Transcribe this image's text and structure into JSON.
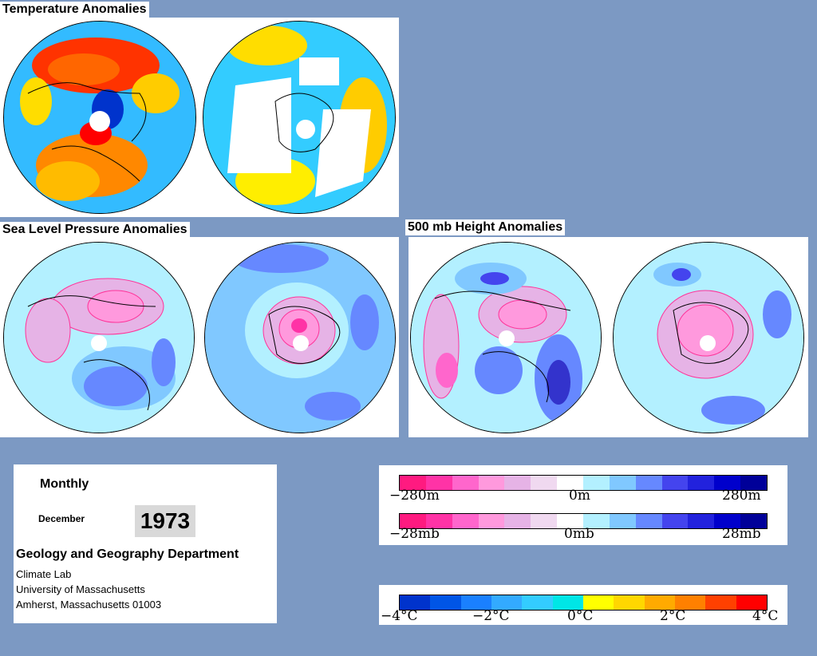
{
  "titles": {
    "temperature": "Temperature Anomalies",
    "slp": "Sea Level Pressure Anomalies",
    "height500": "500 mb Height Anomalies"
  },
  "info": {
    "period": "Monthly",
    "month": "December",
    "year": "1973",
    "department": "Geology and Geography Department",
    "address_lines": [
      "Climate Lab",
      "University of Massachusetts",
      "Amherst, Massachusetts 01003"
    ]
  },
  "legends": {
    "height_scale": {
      "min_label": "−280m",
      "mid_label": "0m",
      "max_label": "280m"
    },
    "pressure_scale": {
      "min_label": "−28mb",
      "mid_label": "0mb",
      "max_label": "28mb"
    },
    "temp_scale": {
      "labels": [
        "−4°C",
        "−2°C",
        "0°C",
        "2°C",
        "4°C"
      ]
    },
    "anomaly_colors": [
      "#ff1a80",
      "#ff33a6",
      "#ff66cc",
      "#ff99dd",
      "#e6b3e6",
      "#f0d9f0",
      "#ffffff",
      "#b3f0ff",
      "#80c8ff",
      "#6688ff",
      "#4444ee",
      "#2222dd",
      "#0000cc",
      "#000099"
    ],
    "temp_colors": [
      "#0033cc",
      "#0055e6",
      "#1a80ff",
      "#33aaff",
      "#33ccff",
      "#00e6e6",
      "#ffff00",
      "#ffd700",
      "#ffaa00",
      "#ff8000",
      "#ff4000",
      "#ff0000"
    ]
  }
}
